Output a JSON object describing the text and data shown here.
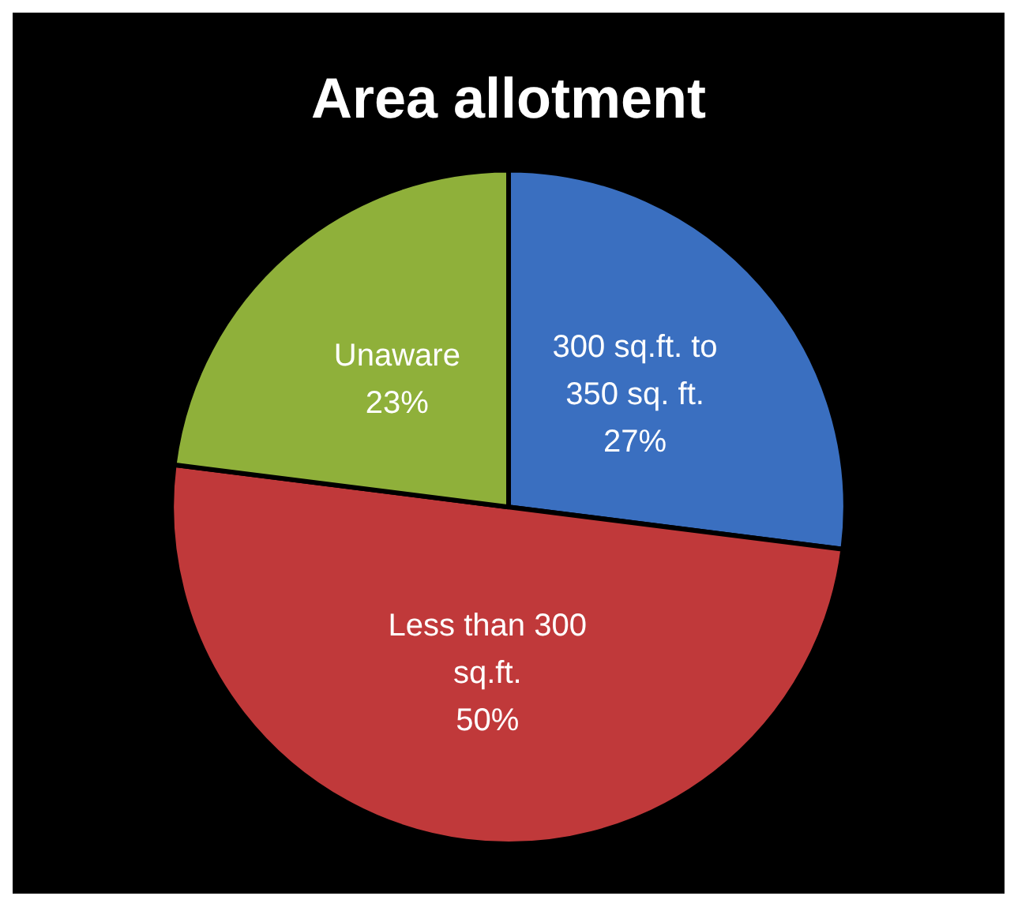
{
  "chart_data": {
    "type": "pie",
    "title": "Area allotment",
    "categories": [
      "300 sq.ft. to 350 sq. ft.",
      "Less than 300 sq.ft.",
      "Unaware"
    ],
    "values": [
      27,
      50,
      23
    ],
    "colors": [
      "#3a6fc0",
      "#c0393a",
      "#8fb03a"
    ],
    "value_labels": [
      "27%",
      "50%",
      "23%"
    ],
    "legend": false
  }
}
